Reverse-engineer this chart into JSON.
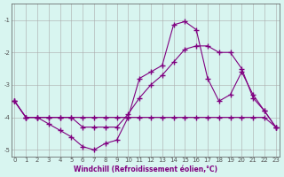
{
  "xlabel": "Windchill (Refroidissement éolien,°C)",
  "ylabel": "",
  "background_color": "#d8f5f0",
  "line_color": "#800080",
  "grid_color": "#aaaaaa",
  "xlim": [
    0,
    23
  ],
  "ylim": [
    -5.2,
    -0.5
  ],
  "xticks": [
    0,
    1,
    2,
    3,
    4,
    5,
    6,
    7,
    8,
    9,
    10,
    11,
    12,
    13,
    14,
    15,
    16,
    17,
    18,
    19,
    20,
    21,
    22,
    23
  ],
  "yticks": [
    -5,
    -4,
    -3,
    -2,
    -1
  ],
  "line1_x": [
    0,
    1,
    2,
    3,
    4,
    5,
    6,
    7,
    8,
    9,
    10,
    11,
    12,
    13,
    14,
    15,
    16,
    17,
    18,
    19,
    20,
    21,
    22,
    23
  ],
  "line1_y": [
    -3.5,
    -4.0,
    -4.0,
    -4.2,
    -4.4,
    -4.6,
    -4.9,
    -5.0,
    -4.8,
    -4.7,
    -4.0,
    -2.8,
    -2.6,
    -2.4,
    -1.15,
    -1.05,
    -1.3,
    -2.8,
    -3.5,
    -3.3,
    -2.6,
    -3.3,
    -3.8,
    -4.3
  ],
  "line2_x": [
    0,
    1,
    2,
    3,
    4,
    5,
    6,
    7,
    8,
    9,
    10,
    11,
    12,
    13,
    14,
    15,
    16,
    17,
    18,
    19,
    20,
    21,
    22,
    23
  ],
  "line2_y": [
    -3.5,
    -4.0,
    -4.0,
    -4.0,
    -4.0,
    -4.0,
    -4.3,
    -4.3,
    -4.3,
    -4.3,
    -3.9,
    -3.4,
    -3.0,
    -2.7,
    -2.3,
    -1.9,
    -1.8,
    -1.8,
    -2.0,
    -2.0,
    -2.5,
    -3.4,
    -3.8,
    -4.3
  ],
  "line3_x": [
    0,
    1,
    2,
    3,
    4,
    5,
    6,
    7,
    8,
    9,
    10,
    11,
    12,
    13,
    14,
    15,
    16,
    17,
    18,
    19,
    20,
    21,
    22,
    23
  ],
  "line3_y": [
    -3.5,
    -4.0,
    -4.0,
    -4.0,
    -4.0,
    -4.0,
    -4.0,
    -4.0,
    -4.0,
    -4.0,
    -4.0,
    -4.0,
    -4.0,
    -4.0,
    -4.0,
    -4.0,
    -4.0,
    -4.0,
    -4.0,
    -4.0,
    -4.0,
    -4.0,
    -4.0,
    -4.3
  ]
}
